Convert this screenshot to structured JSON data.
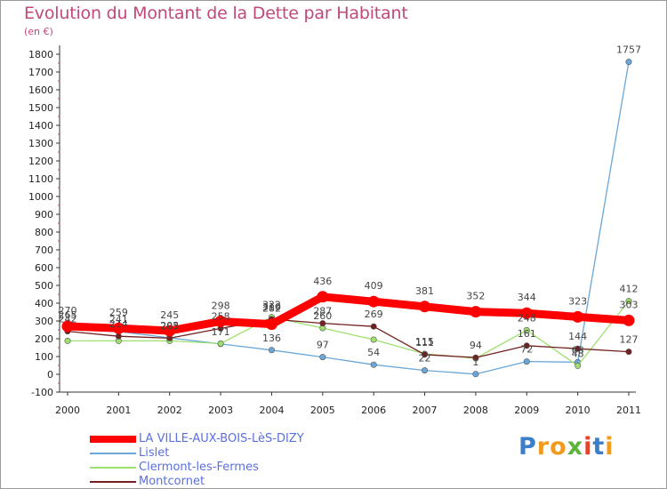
{
  "chart_data": {
    "type": "line",
    "title": "Evolution du Montant de la Dette par Habitant",
    "unit_label": "(en €)",
    "xlabel": "",
    "ylabel": "",
    "categories": [
      "2000",
      "2001",
      "2002",
      "2003",
      "2004",
      "2005",
      "2006",
      "2007",
      "2008",
      "2009",
      "2010",
      "2011"
    ],
    "ylim": [
      -100,
      1850
    ],
    "yticks": [
      -100,
      0,
      100,
      200,
      300,
      400,
      500,
      600,
      700,
      800,
      900,
      1000,
      1100,
      1200,
      1300,
      1400,
      1500,
      1600,
      1700,
      1800
    ],
    "grid": false,
    "legend_position": "bottom-left",
    "series": [
      {
        "name": "LA VILLE-AUX-BOIS-LèS-DIZY",
        "color": "#ff0000",
        "emphasis": true,
        "values": [
          270,
          259,
          245,
          298,
          282,
          436,
          409,
          381,
          352,
          344,
          323,
          303
        ]
      },
      {
        "name": "Lislet",
        "color": "#6aa7d8",
        "emphasis": false,
        "values": [
          265,
          241,
          205,
          171,
          136,
          97,
          54,
          22,
          1,
          72,
          68,
          1757
        ]
      },
      {
        "name": "Clermont-les-Fermes",
        "color": "#9ee070",
        "emphasis": false,
        "values": [
          188,
          188,
          188,
          173,
          322,
          260,
          195,
          115,
          90,
          248,
          48,
          412
        ]
      },
      {
        "name": "Montcornet",
        "color": "#722020",
        "emphasis": false,
        "values": [
          242,
          214,
          203,
          258,
          310,
          287,
          269,
          111,
          94,
          161,
          144,
          127
        ]
      }
    ],
    "data_labels": [
      {
        "series": 0,
        "values": [
          270,
          259,
          245,
          298,
          282,
          436,
          409,
          381,
          352,
          344,
          323,
          303
        ]
      },
      {
        "series": 1,
        "values": [
          265,
          241,
          205,
          171,
          136,
          97,
          54,
          22,
          1,
          72,
          68,
          1757
        ]
      },
      {
        "series": 2,
        "values": [
          null,
          null,
          null,
          null,
          322,
          260,
          null,
          115,
          null,
          248,
          48,
          412
        ]
      },
      {
        "series": 3,
        "values": [
          242,
          214,
          203,
          258,
          310,
          287,
          269,
          111,
          94,
          161,
          144,
          127
        ]
      }
    ]
  },
  "brand": {
    "letters": [
      "P",
      "r",
      "o",
      "x",
      "i",
      "t",
      "i"
    ],
    "colors": [
      "#3a7fc8",
      "#f29a1e",
      "#f29a1e",
      "#5bb53a",
      "#e8402a",
      "#3a7fc8",
      "#f29a1e"
    ]
  }
}
